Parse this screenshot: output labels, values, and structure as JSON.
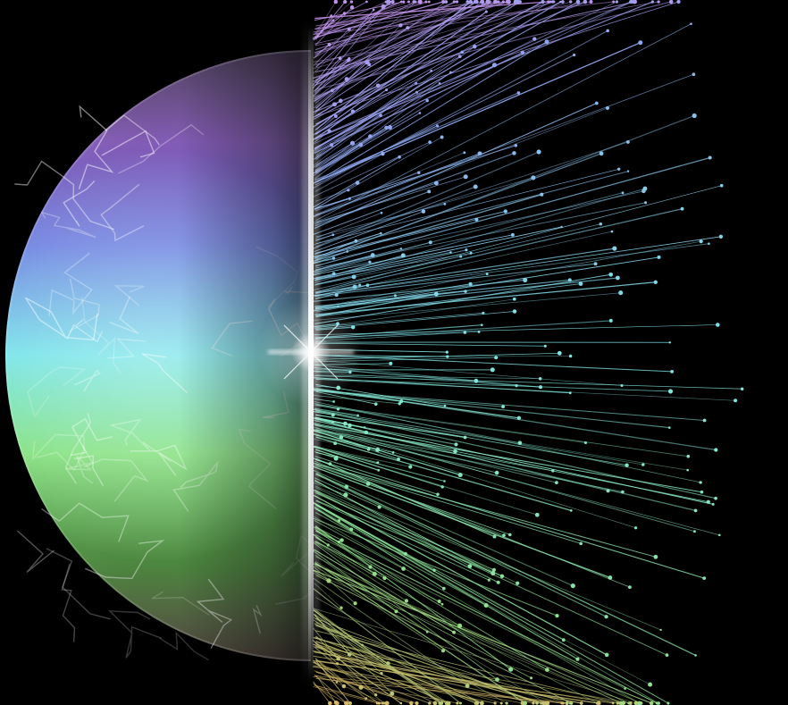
{
  "scene": {
    "subject": "half-sphere-dissolving-into-particles",
    "background_color": "#000000",
    "palette": {
      "top": "#c98fe8",
      "upper_mid": "#8fa6f0",
      "middle": "#7fe6e6",
      "lower_mid": "#8ee08a",
      "bottom": "#e0b060"
    },
    "flare_color": "#ffffff"
  }
}
